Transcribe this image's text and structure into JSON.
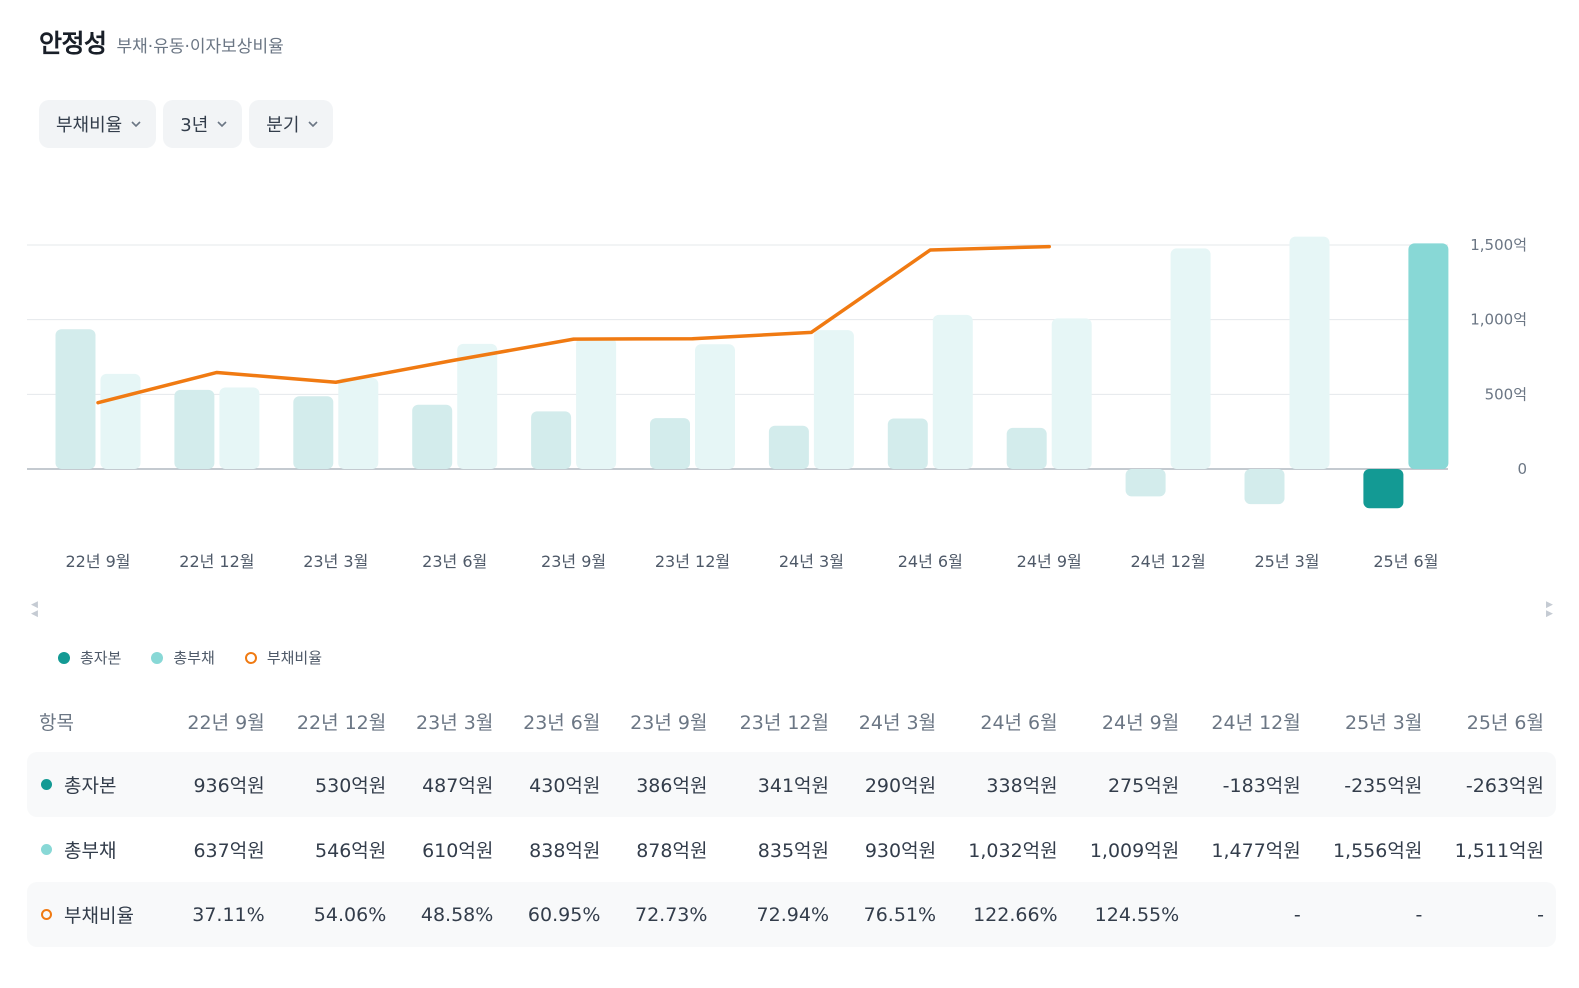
{
  "header": {
    "title": "안정성",
    "subtitle": "부채·유동·이자보상비율"
  },
  "filters": [
    {
      "label": "부채비율"
    },
    {
      "label": "3년"
    },
    {
      "label": "분기"
    }
  ],
  "colors": {
    "equity": "#139a94",
    "equity_light": "#d3ecec",
    "liabilities": "#88d8d6",
    "liabilities_light": "#e6f6f6",
    "ratio_line": "#f07a12"
  },
  "chart_data": {
    "type": "bar",
    "categories": [
      "22년 9월",
      "22년 12월",
      "23년 3월",
      "23년 6월",
      "23년 9월",
      "23년 12월",
      "24년 3월",
      "24년 6월",
      "24년 9월",
      "24년 12월",
      "25년 3월",
      "25년 6월"
    ],
    "series": [
      {
        "name": "총자본",
        "values": [
          936,
          530,
          487,
          430,
          386,
          341,
          290,
          338,
          275,
          -183,
          -235,
          -263
        ]
      },
      {
        "name": "총부채",
        "values": [
          637,
          546,
          610,
          838,
          878,
          835,
          930,
          1032,
          1009,
          1477,
          1556,
          1511
        ]
      },
      {
        "name": "부채비율",
        "type": "line",
        "values": [
          37.11,
          54.06,
          48.58,
          60.95,
          72.73,
          72.94,
          76.51,
          122.66,
          124.55,
          null,
          null,
          null
        ]
      }
    ],
    "y_ticks": [
      "1,500억",
      "1,000억",
      "500억",
      "0"
    ],
    "y_tick_values": [
      1500,
      1000,
      500,
      0
    ],
    "ylim": [
      -263,
      1500
    ],
    "highlight_index": 11
  },
  "legend": [
    {
      "label": "총자본"
    },
    {
      "label": "총부채"
    },
    {
      "label": "부채비율"
    }
  ],
  "table": {
    "header_label": "항목",
    "columns": [
      "22년 9월",
      "22년 12월",
      "23년 3월",
      "23년 6월",
      "23년 9월",
      "23년 12월",
      "24년 3월",
      "24년 6월",
      "24년 9월",
      "24년 12월",
      "25년 3월",
      "25년 6월"
    ],
    "rows": [
      {
        "label": "총자본",
        "cells": [
          "936억원",
          "530억원",
          "487억원",
          "430억원",
          "386억원",
          "341억원",
          "290억원",
          "338억원",
          "275억원",
          "-183억원",
          "-235억원",
          "-263억원"
        ]
      },
      {
        "label": "총부채",
        "cells": [
          "637억원",
          "546억원",
          "610억원",
          "838억원",
          "878억원",
          "835억원",
          "930억원",
          "1,032억원",
          "1,009억원",
          "1,477억원",
          "1,556억원",
          "1,511억원"
        ]
      },
      {
        "label": "부채비율",
        "cells": [
          "37.11%",
          "54.06%",
          "48.58%",
          "60.95%",
          "72.73%",
          "72.94%",
          "76.51%",
          "122.66%",
          "124.55%",
          "-",
          "-",
          "-"
        ]
      }
    ]
  }
}
